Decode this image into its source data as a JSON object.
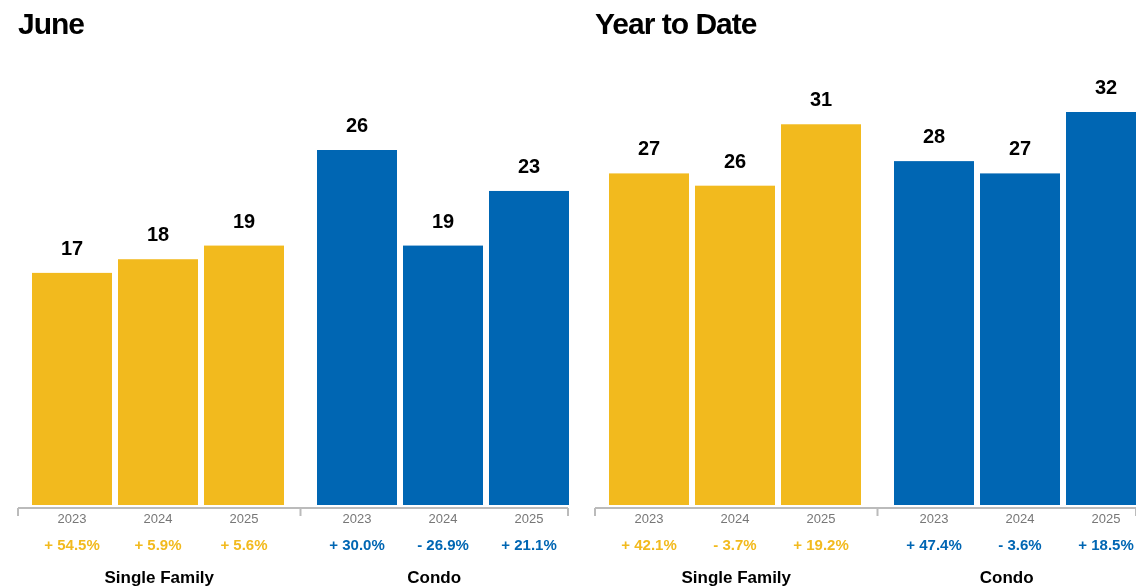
{
  "chart_data": [
    {
      "type": "bar",
      "title": "June",
      "categories": [
        "2023",
        "2024",
        "2025",
        "2023",
        "2024",
        "2025"
      ],
      "values": [
        17,
        18,
        19,
        26,
        19,
        23
      ],
      "colors": [
        "#f2ba1e",
        "#f2ba1e",
        "#f2ba1e",
        "#0066b3",
        "#0066b3",
        "#0066b3"
      ],
      "data_labels": true,
      "annotations": [
        "+ 54.5%",
        "+ 5.9%",
        "+ 5.6%",
        "+ 30.0%",
        "- 26.9%",
        "+ 21.1%",
        "Single Family",
        "Condo"
      ]
    },
    {
      "type": "bar",
      "title": "Year to Date",
      "categories": [
        "2023",
        "2024",
        "2025",
        "2023",
        "2024",
        "2025"
      ],
      "values": [
        27,
        26,
        31,
        28,
        27,
        32
      ],
      "colors": [
        "#f2ba1e",
        "#f2ba1e",
        "#f2ba1e",
        "#0066b3",
        "#0066b3",
        "#0066b3"
      ],
      "data_labels": true,
      "annotations": [
        "+ 42.1%",
        "- 3.7%",
        "+ 19.2%",
        "+ 47.4%",
        "- 3.6%",
        "+ 18.5%",
        "Single Family",
        "Condo"
      ]
    }
  ]
}
